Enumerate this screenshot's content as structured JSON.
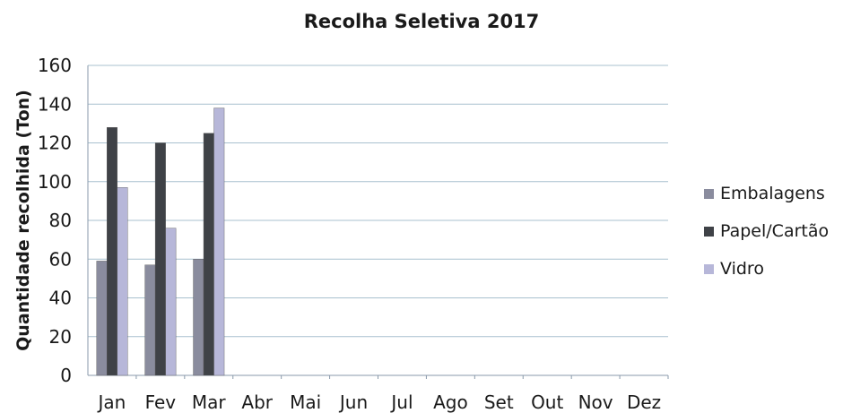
{
  "chart_data": {
    "type": "bar",
    "title": "Recolha Seletiva 2017",
    "xlabel": "",
    "ylabel": "Quantidade recolhida (Ton)",
    "ylim": [
      0,
      160
    ],
    "yticks": [
      0,
      20,
      40,
      60,
      80,
      100,
      120,
      140,
      160
    ],
    "categories": [
      "Jan",
      "Fev",
      "Mar",
      "Abr",
      "Mai",
      "Jun",
      "Jul",
      "Ago",
      "Set",
      "Out",
      "Nov",
      "Dez"
    ],
    "series": [
      {
        "name": "Embalagens",
        "color": "#8a8c9e",
        "values": [
          59,
          57,
          60,
          null,
          null,
          null,
          null,
          null,
          null,
          null,
          null,
          null
        ]
      },
      {
        "name": "Papel/Cartão",
        "color": "#3f4247",
        "values": [
          128,
          120,
          125,
          null,
          null,
          null,
          null,
          null,
          null,
          null,
          null,
          null
        ]
      },
      {
        "name": "Vidro",
        "color": "#b7b7d9",
        "values": [
          97,
          76,
          138,
          null,
          null,
          null,
          null,
          null,
          null,
          null,
          null,
          null
        ]
      }
    ],
    "grid": true,
    "legend_position": "right"
  }
}
